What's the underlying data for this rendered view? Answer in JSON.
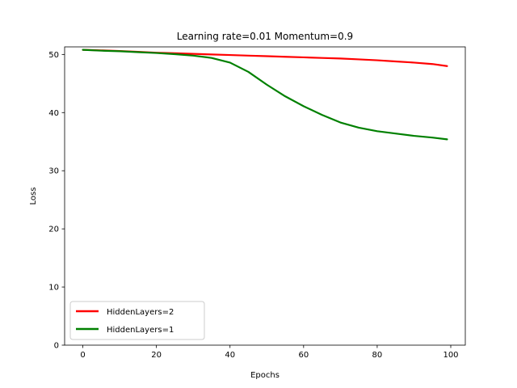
{
  "chart_data": {
    "type": "line",
    "title": "Learning rate=0.01 Momentum=0.9",
    "xlabel": "Epochs",
    "ylabel": "Loss",
    "xlim": [
      -4.95,
      103.95
    ],
    "ylim": [
      0,
      51.3
    ],
    "xticks": [
      0,
      20,
      40,
      60,
      80,
      100
    ],
    "yticks": [
      0,
      10,
      20,
      30,
      40,
      50
    ],
    "legend_position": "lower-left",
    "series": [
      {
        "name": "HiddenLayers=2",
        "color": "#ff0000",
        "x": [
          0,
          5,
          10,
          15,
          20,
          25,
          30,
          35,
          40,
          45,
          50,
          55,
          60,
          65,
          70,
          75,
          80,
          85,
          90,
          95,
          99
        ],
        "y": [
          50.8,
          50.7,
          50.6,
          50.45,
          50.3,
          50.2,
          50.1,
          50.0,
          49.9,
          49.8,
          49.7,
          49.6,
          49.5,
          49.4,
          49.3,
          49.15,
          49.0,
          48.8,
          48.6,
          48.35,
          48.0
        ]
      },
      {
        "name": "HiddenLayers=1",
        "color": "#008000",
        "x": [
          0,
          5,
          10,
          15,
          20,
          25,
          30,
          35,
          40,
          45,
          50,
          55,
          60,
          65,
          70,
          75,
          80,
          85,
          90,
          95,
          99
        ],
        "y": [
          50.8,
          50.65,
          50.55,
          50.4,
          50.25,
          50.05,
          49.8,
          49.4,
          48.6,
          47.0,
          44.8,
          42.8,
          41.1,
          39.6,
          38.3,
          37.4,
          36.8,
          36.4,
          36.0,
          35.7,
          35.4
        ]
      }
    ]
  }
}
